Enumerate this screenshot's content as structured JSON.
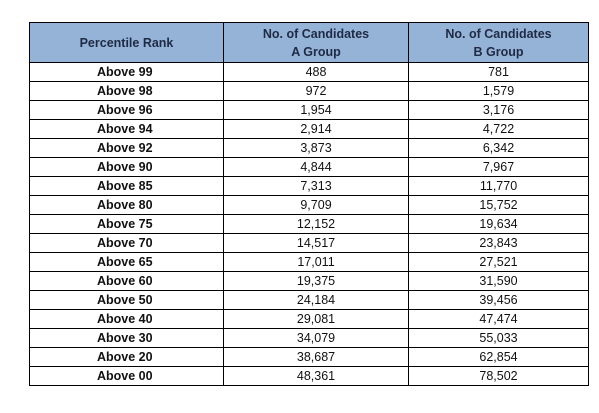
{
  "table": {
    "headers": {
      "rank": "Percentile Rank",
      "a_line1": "No. of Candidates",
      "a_line2": "A Group",
      "b_line1": "No. of Candidates",
      "b_line2": "B Group"
    },
    "rows": [
      {
        "rank": "Above 99",
        "a": "488",
        "b": "781"
      },
      {
        "rank": "Above 98",
        "a": "972",
        "b": "1,579"
      },
      {
        "rank": "Above 96",
        "a": "1,954",
        "b": "3,176"
      },
      {
        "rank": "Above 94",
        "a": "2,914",
        "b": "4,722"
      },
      {
        "rank": "Above 92",
        "a": "3,873",
        "b": "6,342"
      },
      {
        "rank": "Above 90",
        "a": "4,844",
        "b": "7,967"
      },
      {
        "rank": "Above 85",
        "a": "7,313",
        "b": "11,770"
      },
      {
        "rank": "Above 80",
        "a": "9,709",
        "b": "15,752"
      },
      {
        "rank": "Above 75",
        "a": "12,152",
        "b": "19,634"
      },
      {
        "rank": "Above 70",
        "a": "14,517",
        "b": "23,843"
      },
      {
        "rank": "Above 65",
        "a": "17,011",
        "b": "27,521"
      },
      {
        "rank": "Above 60",
        "a": "19,375",
        "b": "31,590"
      },
      {
        "rank": "Above 50",
        "a": "24,184",
        "b": "39,456"
      },
      {
        "rank": "Above 40",
        "a": "29,081",
        "b": "47,474"
      },
      {
        "rank": "Above 30",
        "a": "34,079",
        "b": "55,033"
      },
      {
        "rank": "Above 20",
        "a": "38,687",
        "b": "62,854"
      },
      {
        "rank": "Above 00",
        "a": "48,361",
        "b": "78,502"
      }
    ]
  },
  "colors": {
    "header_bg": "#95b3d7",
    "border": "#000000"
  }
}
